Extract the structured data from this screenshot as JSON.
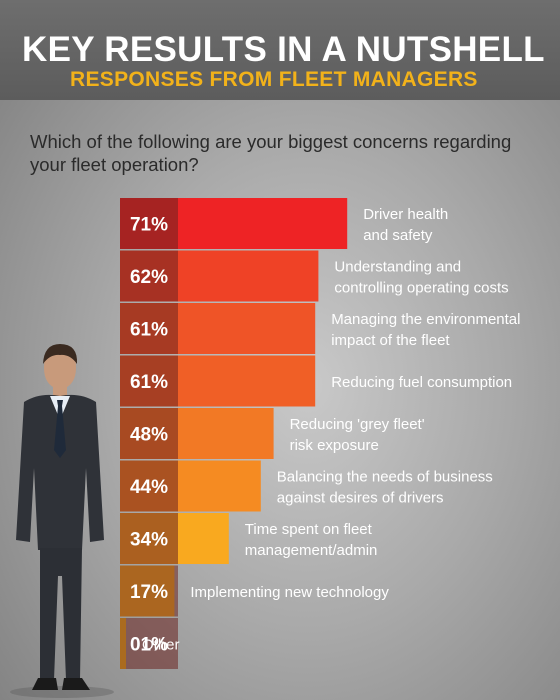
{
  "title": "KEY RESULTS IN A NUTSHELL",
  "subtitle": "RESPONSES FROM FLEET MANAGERS",
  "question": "Which of the following are your biggest concerns regarding your fleet operation?",
  "colors": {
    "accent": "#f2b21a",
    "bars": [
      "#ee2325",
      "#ef4226",
      "#ef5427",
      "#f05f26",
      "#f27925",
      "#f58b22",
      "#f9a91f",
      "#f8b51f",
      "#f6c21e"
    ],
    "percent_column": "#6b2520"
  },
  "chart_data": {
    "type": "bar",
    "orientation": "horizontal",
    "title": "KEY RESULTS IN A NUTSHELL",
    "subtitle": "RESPONSES FROM FLEET MANAGERS",
    "categories": [
      [
        "Driver health",
        "and safety"
      ],
      [
        "Understanding and",
        "controlling operating costs"
      ],
      [
        "Managing the environmental",
        "impact of the fleet"
      ],
      [
        "Reducing fuel consumption"
      ],
      [
        "Reducing 'grey fleet'",
        "risk exposure"
      ],
      [
        "Balancing the needs of business",
        "against desires of drivers"
      ],
      [
        "Time spent on fleet",
        "management/admin"
      ],
      [
        "Implementing new technology"
      ],
      [
        "Other"
      ]
    ],
    "values": [
      71,
      62,
      61,
      61,
      48,
      44,
      34,
      17,
      1
    ],
    "value_labels": [
      "71%",
      "62%",
      "61%",
      "61%",
      "48%",
      "44%",
      "34%",
      "17%",
      "01%"
    ],
    "xlim": [
      0,
      100
    ],
    "grid": false,
    "legend": "none"
  }
}
